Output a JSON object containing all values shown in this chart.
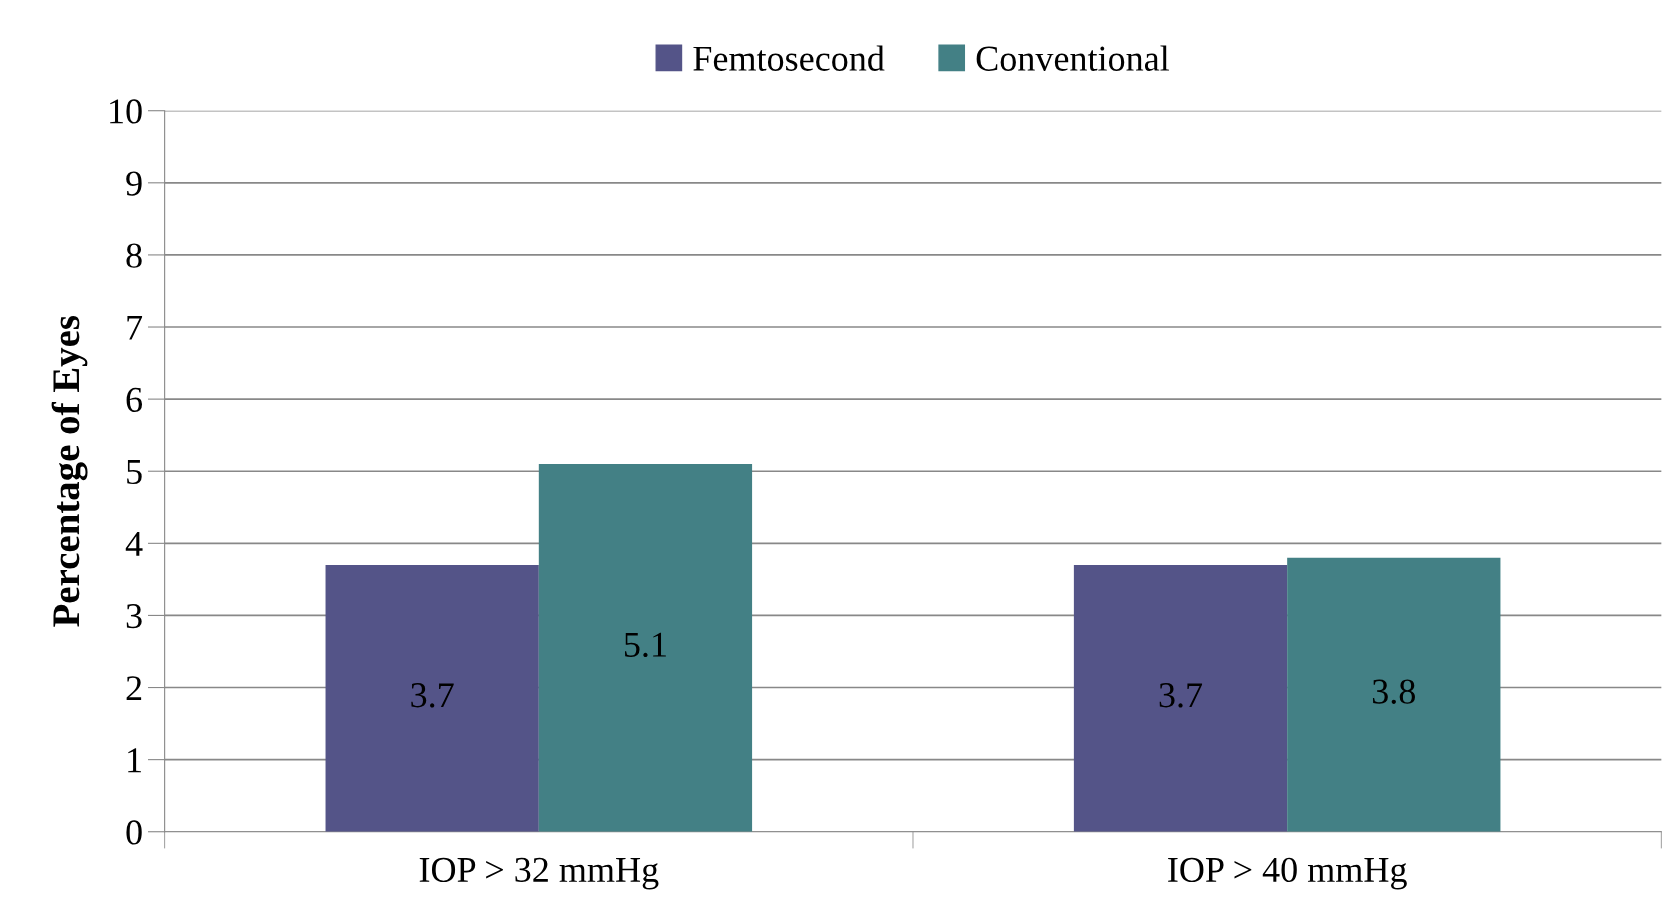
{
  "chart_data": {
    "type": "bar",
    "ylabel": "Percentage of Eyes",
    "categories": [
      "IOP > 32 mmHg",
      "IOP > 40 mmHg"
    ],
    "series": [
      {
        "name": "Femtosecond",
        "color": "#545488",
        "values": [
          3.7,
          3.7
        ]
      },
      {
        "name": "Conventional",
        "color": "#438085",
        "values": [
          5.1,
          3.8
        ]
      }
    ],
    "ylim": [
      0,
      10
    ],
    "yticks": [
      0,
      1,
      2,
      3,
      4,
      5,
      6,
      7,
      8,
      9,
      10
    ],
    "grid": "y",
    "legend": "top",
    "data_labels": true
  }
}
